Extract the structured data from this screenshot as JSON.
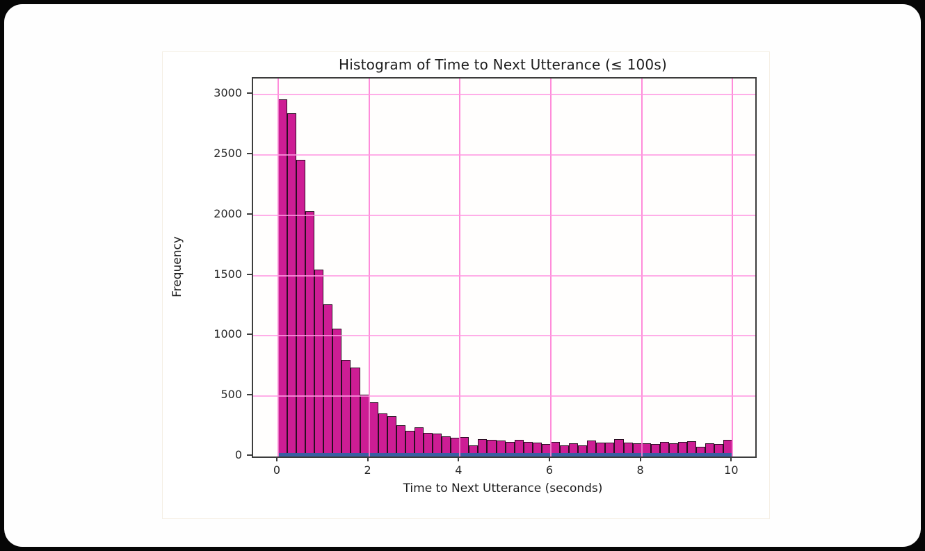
{
  "chart_data": {
    "type": "bar",
    "title": "Histogram of Time to Next Utterance (≤ 100s)",
    "xlabel": "Time to Next Utterance (seconds)",
    "ylabel": "Frequency",
    "bin_start": 0,
    "bin_width": 0.2,
    "values": [
      2960,
      2845,
      2460,
      2035,
      1550,
      1260,
      1060,
      800,
      740,
      515,
      450,
      355,
      335,
      260,
      215,
      240,
      195,
      190,
      165,
      155,
      160,
      95,
      143,
      137,
      135,
      121,
      137,
      121,
      115,
      105,
      121,
      92,
      110,
      92,
      133,
      115,
      115,
      144,
      115,
      112,
      110,
      104,
      121,
      110,
      121,
      127,
      81,
      107,
      104,
      140
    ],
    "xticks": [
      0,
      2,
      4,
      6,
      8,
      10
    ],
    "yticks": [
      0,
      500,
      1000,
      1500,
      2000,
      2500,
      3000
    ],
    "xlim": [
      -0.55,
      10.5
    ],
    "ylim": [
      0,
      3134
    ],
    "grid": true,
    "legend": null,
    "colors": {
      "bar_fill": "#cd1d94",
      "bar_edge": "#2a0e22",
      "grid_vertical": "rgba(255,128,214,0.9)",
      "grid_horizontal": "rgba(255,154,226,0.8)",
      "baseline_band": "#3a5fa2",
      "spine": "#3c3c3c",
      "text": "#1c1c1c"
    }
  }
}
